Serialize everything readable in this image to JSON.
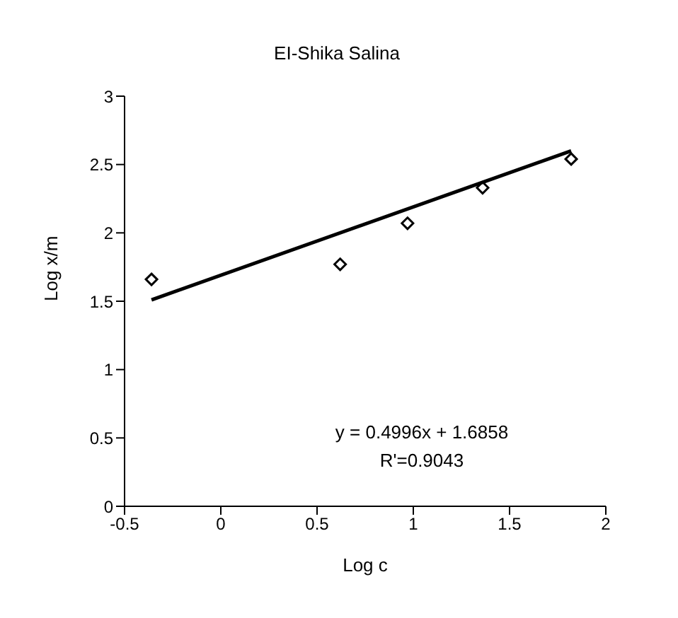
{
  "chart_data": {
    "type": "scatter",
    "title": "EI-Shika Salina",
    "xlabel": "Log c",
    "ylabel": "Log x/m",
    "xlim": [
      -0.5,
      2
    ],
    "xticks": [
      -0.5,
      0,
      0.5,
      1,
      1.5,
      2
    ],
    "ylim": [
      0,
      3
    ],
    "yticks": [
      0,
      0.5,
      1,
      1.5,
      2,
      2.5,
      3
    ],
    "grid": false,
    "legend": false,
    "marker": "diamond",
    "series": [
      {
        "color": "#000000",
        "x": [
          -0.36,
          0.62,
          0.97,
          1.36,
          1.82
        ],
        "values": [
          1.66,
          1.77,
          2.07,
          2.33,
          2.54
        ]
      },
      {
        "type": "line",
        "color": "#000000",
        "x": [
          -0.36,
          1.82
        ],
        "values": [
          1.51,
          2.6
        ],
        "marker": "none",
        "line_style": "solid"
      }
    ],
    "annotations": [
      "y = 0.4996x + 1.6858",
      "R'=0.9043"
    ]
  }
}
